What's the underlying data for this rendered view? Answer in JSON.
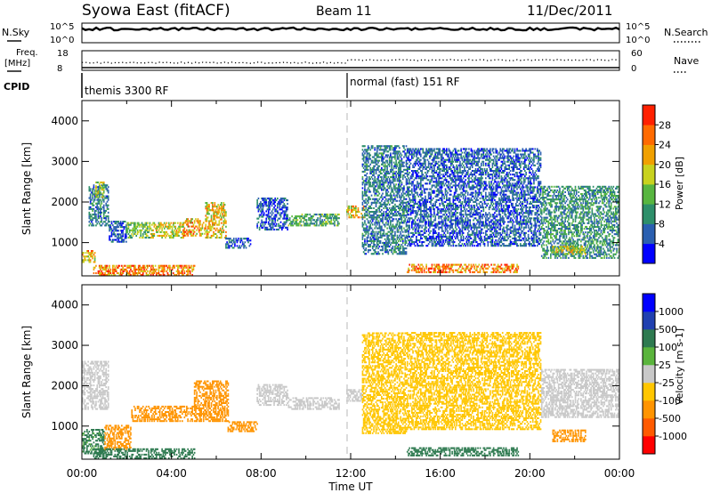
{
  "header": {
    "station": "Syowa East (fitACF)",
    "beam": "Beam 11",
    "date": "11/Dec/2011"
  },
  "summary": {
    "nsky_label": "N.Sky",
    "nsky_ticks": [
      "10^5",
      "10^0"
    ],
    "nsearch_label": "N.Search",
    "nsearch_ticks": [
      "10^5",
      "10^0"
    ],
    "freq_label_line1": "Freq.",
    "freq_label_line2": "[MHz]",
    "freq_ticks": [
      "18",
      "8"
    ],
    "nave_label": "Nave",
    "nave_ticks": [
      "60",
      "0"
    ],
    "cpid_label": "CPID",
    "cpid_segments": [
      {
        "name": "themis 3300 RF",
        "start_hour": 0
      },
      {
        "name": "normal (fast) 151 RF",
        "start_hour": 12
      }
    ]
  },
  "colors": {
    "power_scale": [
      "#0000ff",
      "#2a5fb0",
      "#2e8f6a",
      "#58b640",
      "#c8d21e",
      "#f0a000",
      "#ff6a00",
      "#ff2000"
    ],
    "velocity_scale": [
      "#ff0000",
      "#ff5a00",
      "#ff9400",
      "#ffc600",
      "#c8c8c8",
      "#5ab43c",
      "#2e7a50",
      "#2040b0",
      "#0000ff"
    ]
  },
  "chart_data": [
    {
      "type": "heatmap",
      "name": "power",
      "title": "",
      "xlabel": "",
      "ylabel": "Slant Range [km]",
      "colorbar_label": "Power [dB]",
      "colorbar_ticks": [
        "4",
        "8",
        "12",
        "16",
        "20",
        "24",
        "28"
      ],
      "xlim": [
        0,
        24
      ],
      "ylim": [
        180,
        4500
      ],
      "yticks": [
        "1000",
        "2000",
        "3000",
        "4000"
      ],
      "bands": [
        {
          "t0": 0.0,
          "t1": 0.6,
          "r0": 500,
          "r1": 800,
          "v": 22
        },
        {
          "t0": 0.3,
          "t1": 1.2,
          "r0": 1400,
          "r1": 2400,
          "v": 8
        },
        {
          "t0": 0.6,
          "t1": 1.0,
          "r0": 2100,
          "r1": 2500,
          "v": 16
        },
        {
          "t0": 1.2,
          "t1": 2.0,
          "r0": 1000,
          "r1": 1500,
          "v": 6
        },
        {
          "t0": 2.0,
          "t1": 3.0,
          "r0": 1100,
          "r1": 1500,
          "v": 14
        },
        {
          "t0": 3.0,
          "t1": 4.5,
          "r0": 1100,
          "r1": 1500,
          "v": 18
        },
        {
          "t0": 4.5,
          "t1": 5.5,
          "r0": 1150,
          "r1": 1600,
          "v": 22
        },
        {
          "t0": 5.5,
          "t1": 6.4,
          "r0": 1100,
          "r1": 2000,
          "v": 20
        },
        {
          "t0": 6.4,
          "t1": 7.5,
          "r0": 850,
          "r1": 1100,
          "v": 6
        },
        {
          "t0": 0.5,
          "t1": 5.0,
          "r0": 180,
          "r1": 450,
          "v": 24
        },
        {
          "t0": 7.8,
          "t1": 9.2,
          "r0": 1300,
          "r1": 2100,
          "v": 6
        },
        {
          "t0": 9.2,
          "t1": 11.5,
          "r0": 1400,
          "r1": 1700,
          "v": 12
        },
        {
          "t0": 11.8,
          "t1": 12.6,
          "r0": 1600,
          "r1": 1900,
          "v": 20
        },
        {
          "t0": 12.5,
          "t1": 14.5,
          "r0": 700,
          "r1": 3400,
          "v": 8
        },
        {
          "t0": 14.5,
          "t1": 19.5,
          "r0": 250,
          "r1": 450,
          "v": 24
        },
        {
          "t0": 14.5,
          "t1": 20.5,
          "r0": 900,
          "r1": 3300,
          "v": 6
        },
        {
          "t0": 20.5,
          "t1": 24.0,
          "r0": 600,
          "r1": 2400,
          "v": 10
        },
        {
          "t0": 21.0,
          "t1": 22.5,
          "r0": 700,
          "r1": 900,
          "v": 18
        }
      ]
    },
    {
      "type": "heatmap",
      "name": "velocity",
      "title": "",
      "xlabel": "Time UT",
      "ylabel": "Slant Range [km]",
      "colorbar_label": "Velocity [m s-1]",
      "colorbar_ticks": [
        "-1000",
        "-500",
        "-100",
        "-25",
        "25",
        "100",
        "500",
        "1000"
      ],
      "xlim": [
        0,
        24
      ],
      "ylim": [
        180,
        4500
      ],
      "xticks": [
        "00:00",
        "04:00",
        "08:00",
        "12:00",
        "16:00",
        "20:00",
        "00:00"
      ],
      "yticks": [
        "1000",
        "2000",
        "3000",
        "4000"
      ],
      "bands": [
        {
          "t0": 0.0,
          "t1": 1.2,
          "r0": 1400,
          "r1": 2600,
          "v": 0
        },
        {
          "t0": 0.0,
          "t1": 1.0,
          "r0": 300,
          "r1": 900,
          "v": 120
        },
        {
          "t0": 1.0,
          "t1": 2.2,
          "r0": 400,
          "r1": 1000,
          "v": -150
        },
        {
          "t0": 2.2,
          "t1": 6.5,
          "r0": 1100,
          "r1": 1500,
          "v": -300
        },
        {
          "t0": 5.0,
          "t1": 6.5,
          "r0": 1500,
          "r1": 2100,
          "v": -250
        },
        {
          "t0": 6.5,
          "t1": 7.8,
          "r0": 850,
          "r1": 1100,
          "v": -300
        },
        {
          "t0": 0.5,
          "t1": 5.0,
          "r0": 180,
          "r1": 450,
          "v": 150
        },
        {
          "t0": 7.8,
          "t1": 9.2,
          "r0": 1500,
          "r1": 2000,
          "v": 0
        },
        {
          "t0": 9.2,
          "t1": 11.5,
          "r0": 1400,
          "r1": 1700,
          "v": 0
        },
        {
          "t0": 11.8,
          "t1": 12.6,
          "r0": 1600,
          "r1": 1900,
          "v": 0
        },
        {
          "t0": 12.5,
          "t1": 14.5,
          "r0": 800,
          "r1": 3300,
          "v": -60
        },
        {
          "t0": 14.5,
          "t1": 19.5,
          "r0": 250,
          "r1": 450,
          "v": 150
        },
        {
          "t0": 14.5,
          "t1": 20.5,
          "r0": 900,
          "r1": 3300,
          "v": -60
        },
        {
          "t0": 20.5,
          "t1": 24.0,
          "r0": 1200,
          "r1": 2400,
          "v": 0
        },
        {
          "t0": 21.0,
          "t1": 22.5,
          "r0": 600,
          "r1": 900,
          "v": -300
        }
      ]
    }
  ]
}
